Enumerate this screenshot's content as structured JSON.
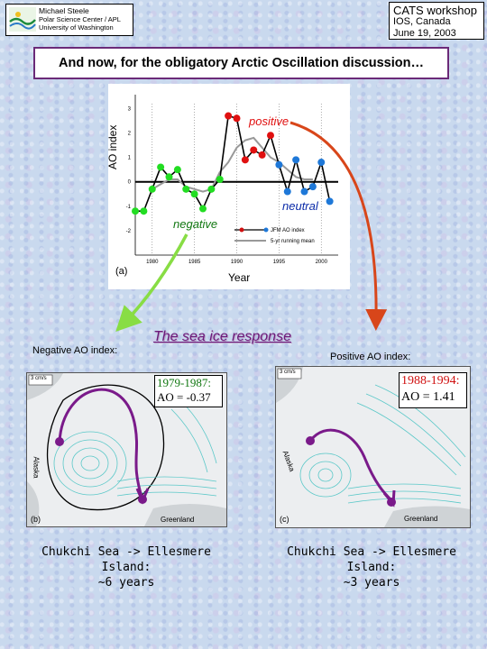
{
  "header_left": {
    "line1": "Michael Steele",
    "line2": "Polar Science Center / APL",
    "line3": "University of Washington"
  },
  "header_right": {
    "line1": "CATS workshop",
    "line2": "IOS, Canada",
    "line3": "June 19, 2003"
  },
  "title": "And now, for the obligatory Arctic Oscillation discussion…",
  "annotations": {
    "positive": "positive",
    "neutral": "neutral",
    "negative": "negative",
    "sea_ice_response": "The sea ice response"
  },
  "chart_data": {
    "type": "line",
    "panel_label": "(a)",
    "xlabel": "Year",
    "ylabel": "AO index",
    "xlim": [
      1978,
      2002
    ],
    "ylim": [
      -3,
      3.2
    ],
    "x_ticks": [
      1980,
      1985,
      1990,
      1995,
      2000
    ],
    "y_ticks": [
      -2,
      -1,
      0,
      1,
      2,
      3
    ],
    "legend": [
      "JFM AO index",
      "5-yr running mean"
    ],
    "series": [
      {
        "name": "JFM AO index",
        "x": [
          1978,
          1979,
          1980,
          1981,
          1982,
          1983,
          1984,
          1985,
          1986,
          1987,
          1988,
          1989,
          1990,
          1991,
          1992,
          1993,
          1994,
          1995,
          1996,
          1997,
          1998,
          1999,
          2000,
          2001
        ],
        "y": [
          -1.2,
          -1.2,
          -0.3,
          0.6,
          0.2,
          0.5,
          -0.3,
          -0.5,
          -1.1,
          -0.3,
          0.1,
          2.7,
          2.6,
          0.9,
          1.3,
          1.1,
          1.9,
          0.7,
          -0.4,
          0.9,
          -0.4,
          -0.2,
          0.8,
          -0.8
        ],
        "colors": [
          "green",
          "green",
          "green",
          "green",
          "green",
          "green",
          "green",
          "green",
          "green",
          "green",
          "green",
          "red",
          "red",
          "red",
          "red",
          "red",
          "red",
          "blue",
          "blue",
          "blue",
          "blue",
          "blue",
          "blue",
          "blue"
        ]
      },
      {
        "name": "5-yr running mean",
        "x": [
          1980,
          1981,
          1982,
          1983,
          1984,
          1985,
          1986,
          1987,
          1988,
          1989,
          1990,
          1991,
          1992,
          1993,
          1994,
          1995,
          1996,
          1997,
          1998,
          1999
        ],
        "y": [
          -0.3,
          -0.1,
          0.1,
          0.1,
          -0.2,
          -0.3,
          -0.4,
          -0.3,
          0.4,
          0.8,
          1.4,
          1.7,
          1.8,
          1.4,
          1.0,
          0.8,
          0.5,
          0.2,
          0.1,
          0.1
        ]
      }
    ]
  },
  "left_panel": {
    "heading": "Negative AO index:",
    "box_years": "1979-1987:",
    "box_ao": "AO = -0.37",
    "scale": "3 cm/s",
    "panel_label": "(b)",
    "place_alaska": "Alaska",
    "place_greenland": "Greenland",
    "caption_line1": "Chukchi Sea -> Ellesmere Island:",
    "caption_line2": "~6 years"
  },
  "right_panel": {
    "heading": "Positive AO index:",
    "box_years": "1988-1994:",
    "box_ao": "AO = 1.41",
    "scale": "3 cm/s",
    "panel_label": "(c)",
    "place_alaska": "Alaska",
    "place_greenland": "Greenland",
    "caption_line1": "Chukchi Sea -> Ellesmere Island:",
    "caption_line2": "~3 years"
  },
  "colors": {
    "title_border": "#6b2a78",
    "arrow_red": "#d8461a",
    "arrow_green": "#88dd44",
    "drift_path": "#7a1a8a",
    "point_red": "#e01010",
    "point_green": "#22dd22",
    "point_blue": "#1e78d8",
    "sea_ice_text": "#6b1a7a"
  }
}
